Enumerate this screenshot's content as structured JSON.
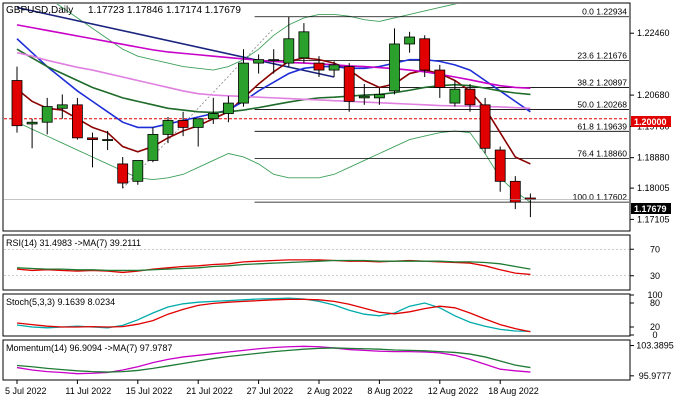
{
  "chart_data": [
    {
      "type": "candlestick",
      "title": "GBPUSD,Daily",
      "ohlc_header": "1.17723 1.17846 1.17174 1.17679",
      "price_badge": "1.17679",
      "round_level_label": "1.20000",
      "round_level": 1.2,
      "ylim": [
        1.168,
        1.233
      ],
      "y_ticks": [
        {
          "value": 1.2246,
          "label": "1.22460"
        },
        {
          "value": 1.2068,
          "label": "1.20680"
        },
        {
          "value": 1.1978,
          "label": "1.19780"
        },
        {
          "value": 1.1888,
          "label": "1.18880"
        },
        {
          "value": 1.18005,
          "label": "1.18005"
        },
        {
          "value": 1.17105,
          "label": "1.17105"
        }
      ],
      "x_labels": [
        {
          "bar": 0,
          "label": "5 Jul 2022"
        },
        {
          "bar": 4,
          "label": "11 Jul 2022"
        },
        {
          "bar": 8,
          "label": "15 Jul 2022"
        },
        {
          "bar": 12,
          "label": "21 Jul 2022"
        },
        {
          "bar": 16,
          "label": "27 Jul 2022"
        },
        {
          "bar": 20,
          "label": "2 Aug 2022"
        },
        {
          "bar": 24,
          "label": "8 Aug 2022"
        },
        {
          "bar": 28,
          "label": "12 Aug 2022"
        },
        {
          "bar": 32,
          "label": "18 Aug 2022"
        }
      ],
      "candles": [
        {
          "o": 1.211,
          "h": 1.215,
          "l": 1.196,
          "c": 1.198
        },
        {
          "o": 1.1985,
          "h": 1.2,
          "l": 1.1915,
          "c": 1.199
        },
        {
          "o": 1.199,
          "h": 1.206,
          "l": 1.1955,
          "c": 1.2035
        },
        {
          "o": 1.203,
          "h": 1.207,
          "l": 1.2,
          "c": 1.204
        },
        {
          "o": 1.204,
          "h": 1.206,
          "l": 1.194,
          "c": 1.1945
        },
        {
          "o": 1.1945,
          "h": 1.196,
          "l": 1.186,
          "c": 1.194
        },
        {
          "o": 1.194,
          "h": 1.1965,
          "l": 1.191,
          "c": 1.194
        },
        {
          "o": 1.187,
          "h": 1.189,
          "l": 1.18,
          "c": 1.1815
        },
        {
          "o": 1.182,
          "h": 1.188,
          "l": 1.181,
          "c": 1.188
        },
        {
          "o": 1.188,
          "h": 1.1975,
          "l": 1.1875,
          "c": 1.1955
        },
        {
          "o": 1.1955,
          "h": 1.2005,
          "l": 1.193,
          "c": 1.1995
        },
        {
          "o": 1.1995,
          "h": 1.202,
          "l": 1.195,
          "c": 1.1975
        },
        {
          "o": 1.1975,
          "h": 1.2,
          "l": 1.192,
          "c": 1.2
        },
        {
          "o": 1.2,
          "h": 1.206,
          "l": 1.1985,
          "c": 1.2015
        },
        {
          "o": 1.2015,
          "h": 1.2065,
          "l": 1.199,
          "c": 1.2045
        },
        {
          "o": 1.2045,
          "h": 1.22,
          "l": 1.2035,
          "c": 1.216
        },
        {
          "o": 1.216,
          "h": 1.2185,
          "l": 1.213,
          "c": 1.217
        },
        {
          "o": 1.217,
          "h": 1.22,
          "l": 1.213,
          "c": 1.217
        },
        {
          "o": 1.216,
          "h": 1.2294,
          "l": 1.215,
          "c": 1.223
        },
        {
          "o": 1.2175,
          "h": 1.2275,
          "l": 1.216,
          "c": 1.225
        },
        {
          "o": 1.216,
          "h": 1.218,
          "l": 1.212,
          "c": 1.214
        },
        {
          "o": 1.214,
          "h": 1.2165,
          "l": 1.212,
          "c": 1.2155
        },
        {
          "o": 1.215,
          "h": 1.216,
          "l": 1.202,
          "c": 1.205
        },
        {
          "o": 1.206,
          "h": 1.21,
          "l": 1.204,
          "c": 1.2065
        },
        {
          "o": 1.206,
          "h": 1.209,
          "l": 1.204,
          "c": 1.207
        },
        {
          "o": 1.208,
          "h": 1.226,
          "l": 1.207,
          "c": 1.2215
        },
        {
          "o": 1.2215,
          "h": 1.225,
          "l": 1.219,
          "c": 1.2235
        },
        {
          "o": 1.223,
          "h": 1.224,
          "l": 1.212,
          "c": 1.214
        },
        {
          "o": 1.214,
          "h": 1.2155,
          "l": 1.206,
          "c": 1.209
        },
        {
          "o": 1.2045,
          "h": 1.211,
          "l": 1.2035,
          "c": 1.2085
        },
        {
          "o": 1.2085,
          "h": 1.21,
          "l": 1.202,
          "c": 1.204
        },
        {
          "o": 1.204,
          "h": 1.206,
          "l": 1.19,
          "c": 1.1915
        },
        {
          "o": 1.191,
          "h": 1.192,
          "l": 1.179,
          "c": 1.182
        },
        {
          "o": 1.182,
          "h": 1.1835,
          "l": 1.174,
          "c": 1.176
        },
        {
          "o": 1.1772,
          "h": 1.1785,
          "l": 1.1717,
          "c": 1.1768
        }
      ],
      "moving_averages": [
        {
          "color": "#8b0000",
          "values": [
            1.2085,
            1.205,
            1.203,
            1.2025,
            1.2,
            1.1975,
            1.196,
            1.192,
            1.1905,
            1.192,
            1.1945,
            1.1965,
            1.198,
            1.2,
            1.202,
            1.206,
            1.21,
            1.2135,
            1.2165,
            1.2175,
            1.217,
            1.216,
            1.214,
            1.211,
            1.209,
            1.21,
            1.213,
            1.214,
            1.213,
            1.211,
            1.208,
            1.203,
            1.196,
            1.189,
            1.187
          ]
        },
        {
          "color": "#1f2fd8",
          "values": [
            1.223,
            1.219,
            1.215,
            1.2115,
            1.208,
            1.205,
            1.202,
            1.199,
            1.1975,
            1.1975,
            1.1985,
            1.1995,
            1.2005,
            1.2015,
            1.2025,
            1.205,
            1.208,
            1.2105,
            1.213,
            1.2145,
            1.215,
            1.215,
            1.2145,
            1.2145,
            1.215,
            1.216,
            1.217,
            1.217,
            1.2165,
            1.2155,
            1.214,
            1.211,
            1.208,
            1.205,
            1.202
          ]
        },
        {
          "color": "#1e6b2a",
          "values": [
            1.22,
            1.2175,
            1.215,
            1.213,
            1.211,
            1.209,
            1.2075,
            1.206,
            1.205,
            1.204,
            1.203,
            1.2025,
            1.202,
            1.2018,
            1.202,
            1.2025,
            1.2032,
            1.204,
            1.2048,
            1.2055,
            1.206,
            1.2062,
            1.2065,
            1.2068,
            1.207,
            1.2075,
            1.2082,
            1.209,
            1.2095,
            1.2098,
            1.2095,
            1.2088,
            1.208,
            1.2074,
            1.207
          ]
        },
        {
          "color": "#c800c8",
          "values": [
            1.227,
            1.2262,
            1.2254,
            1.2246,
            1.2238,
            1.223,
            1.2222,
            1.2214,
            1.2206,
            1.2198,
            1.2192,
            1.2188,
            1.2184,
            1.218,
            1.2176,
            1.2172,
            1.2168,
            1.2165,
            1.2162,
            1.216,
            1.2158,
            1.2155,
            1.2152,
            1.215,
            1.2147,
            1.2144,
            1.214,
            1.2135,
            1.2128,
            1.212,
            1.2112,
            1.2103,
            1.2095,
            1.209,
            1.2088
          ]
        },
        {
          "color": "#e080e0",
          "values": [
            1.219,
            1.218,
            1.2168,
            1.2158,
            1.2148,
            1.214,
            1.213,
            1.212,
            1.211,
            1.21,
            1.209,
            1.208,
            1.2072,
            1.2068,
            1.2066,
            1.2064,
            1.2062,
            1.206,
            1.2058,
            1.2056,
            1.2054,
            1.2052,
            1.205,
            1.2048,
            1.2046,
            1.2044,
            1.2042,
            1.204,
            1.2038,
            1.2037,
            1.2036,
            1.2035,
            1.2034,
            1.2032,
            1.203
          ]
        }
      ],
      "bollinger": {
        "color": "#3fa05a",
        "upper": [
          1.241,
          1.238,
          1.235,
          1.232,
          1.229,
          1.226,
          1.223,
          1.22,
          1.218,
          1.217,
          1.216,
          1.215,
          1.2145,
          1.214,
          1.215,
          1.217,
          1.22,
          1.224,
          1.227,
          1.229,
          1.23,
          1.23,
          1.2295,
          1.2285,
          1.228,
          1.229,
          1.23,
          1.231,
          1.232,
          1.233,
          1.234,
          1.236,
          1.238,
          1.24,
          1.242
        ],
        "middle": [
          1.22,
          1.2175,
          1.215,
          1.213,
          1.211,
          1.209,
          1.2075,
          1.206,
          1.205,
          1.204,
          1.203,
          1.2025,
          1.202,
          1.2018,
          1.202,
          1.2025,
          1.2032,
          1.204,
          1.2048,
          1.2055,
          1.206,
          1.2062,
          1.2065,
          1.2068,
          1.207,
          1.2075,
          1.2082,
          1.209,
          1.2095,
          1.2098,
          1.2095,
          1.2088,
          1.208,
          1.2074,
          1.207
        ],
        "lower": [
          1.199,
          1.197,
          1.195,
          1.193,
          1.191,
          1.189,
          1.187,
          1.185,
          1.183,
          1.1825,
          1.183,
          1.184,
          1.186,
          1.188,
          1.19,
          1.189,
          1.187,
          1.184,
          1.183,
          1.183,
          1.183,
          1.184,
          1.186,
          1.188,
          1.19,
          1.192,
          1.194,
          1.195,
          1.196,
          1.1965,
          1.196,
          1.19,
          1.183,
          1.179,
          1.176
        ]
      },
      "trendline": {
        "color": "#1a237e",
        "from": {
          "bar": 0,
          "value": 1.232
        },
        "to": {
          "bar": 21,
          "value": 1.212
        }
      },
      "trendline_dotted": {
        "color": "#888888",
        "from": {
          "bar": 7,
          "value": 1.18
        },
        "to": {
          "bar": 17,
          "value": 1.226
        }
      },
      "fib_levels": [
        {
          "value": 1.22934,
          "label": "0.0 1.22934",
          "start_bar": 16
        },
        {
          "value": 1.21676,
          "label": "23.6 1.21676",
          "start_bar": 16
        },
        {
          "value": 1.20897,
          "label": "38.2 1.20897",
          "start_bar": 16
        },
        {
          "value": 1.20268,
          "label": "50.0 1.20268",
          "start_bar": 16
        },
        {
          "value": 1.19639,
          "label": "61.8 1.19639",
          "start_bar": 16
        },
        {
          "value": 1.1886,
          "label": "76.4 1.18860",
          "start_bar": 16
        },
        {
          "value": 1.17602,
          "label": "100.0 1.17602",
          "start_bar": 16
        }
      ],
      "current_price_line": {
        "value": 1.17679
      }
    },
    {
      "type": "line",
      "title": "RSI(14) 31.4983 ->MA(7) 39.2111",
      "ylim": [
        10,
        90
      ],
      "ticks": [
        {
          "value": 70,
          "label": "70"
        },
        {
          "value": 30,
          "label": "30"
        }
      ],
      "series": [
        {
          "color": "#e00000",
          "values": [
            40,
            38,
            39,
            38,
            37,
            38,
            37,
            35,
            37,
            40,
            42,
            44,
            45,
            47,
            48,
            51,
            52,
            53,
            54,
            54,
            54,
            53,
            52,
            52,
            51,
            52,
            53,
            52,
            51,
            50,
            49,
            45,
            39,
            34,
            32
          ]
        },
        {
          "color": "#1e7b34",
          "values": [
            42,
            41,
            40,
            40,
            39,
            39,
            38,
            38,
            38,
            39,
            40,
            41,
            42,
            44,
            45,
            47,
            48,
            49,
            50,
            51,
            52,
            53,
            53,
            53,
            52,
            52,
            52,
            52,
            52,
            51,
            51,
            50,
            48,
            44,
            40
          ]
        }
      ]
    },
    {
      "type": "line",
      "title": "Stoch(5,3,3) 9.1639 8.0234",
      "ylim": [
        0,
        100
      ],
      "ticks": [
        {
          "value": 100,
          "label": "100"
        },
        {
          "value": 80,
          "label": "80"
        },
        {
          "value": 20,
          "label": "20"
        },
        {
          "value": 0,
          "label": "0"
        }
      ],
      "series": [
        {
          "color": "#00aaaa",
          "values": [
            25,
            20,
            18,
            20,
            22,
            20,
            18,
            24,
            38,
            55,
            70,
            78,
            82,
            84,
            86,
            88,
            90,
            91,
            92,
            90,
            84,
            75,
            62,
            52,
            48,
            55,
            72,
            80,
            68,
            48,
            32,
            22,
            14,
            10,
            9
          ]
        },
        {
          "color": "#e00000",
          "values": [
            30,
            26,
            22,
            20,
            20,
            21,
            20,
            21,
            27,
            36,
            52,
            64,
            74,
            79,
            82,
            84,
            86,
            88,
            89,
            89,
            88,
            84,
            77,
            67,
            57,
            53,
            58,
            66,
            72,
            68,
            55,
            40,
            26,
            16,
            8
          ]
        }
      ]
    },
    {
      "type": "line",
      "title": "Momentum(14) 96.9094 ->MA(7) 97.9787",
      "ylim": [
        95.2,
        104.5
      ],
      "ticks": [
        {
          "value": 103.3895,
          "label": "103.3895"
        },
        {
          "value": 95.9777,
          "label": "95.9777"
        }
      ],
      "series": [
        {
          "color": "#c800c8",
          "values": [
            98.0,
            97.4,
            97.0,
            96.8,
            96.5,
            96.6,
            96.8,
            97.4,
            98.2,
            99.2,
            100.0,
            100.6,
            101.0,
            101.4,
            101.8,
            102.2,
            102.6,
            102.9,
            103.1,
            103.2,
            103.1,
            102.8,
            102.4,
            102.2,
            102.0,
            101.9,
            101.9,
            101.8,
            101.6,
            101.0,
            100.0,
            98.8,
            97.6,
            97.2,
            96.9
          ]
        },
        {
          "color": "#1e7b34",
          "values": [
            98.5,
            98.2,
            97.8,
            97.5,
            97.2,
            97.0,
            96.9,
            97.0,
            97.3,
            97.8,
            98.4,
            99.0,
            99.6,
            100.2,
            100.7,
            101.1,
            101.5,
            101.9,
            102.2,
            102.5,
            102.7,
            102.8,
            102.7,
            102.6,
            102.5,
            102.3,
            102.2,
            102.1,
            101.9,
            101.7,
            101.3,
            100.6,
            99.6,
            98.6,
            98.0
          ]
        }
      ]
    }
  ]
}
